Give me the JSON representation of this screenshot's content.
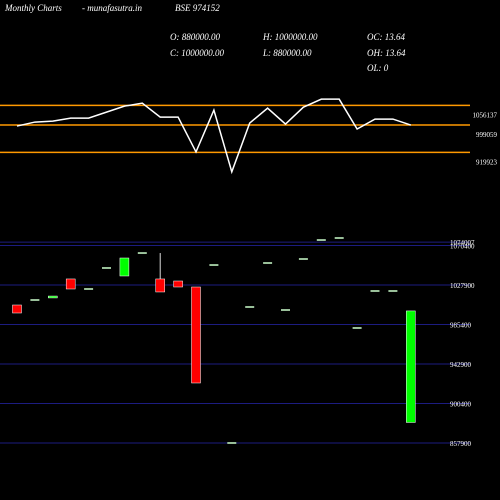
{
  "header": {
    "site": "Monthly Charts",
    "source": "- munafasutra.in",
    "symbol": "BSE 974152",
    "stats": [
      "O: 880000.00",
      "H: 1000000.00",
      "OC: 13.64",
      "C: 1000000.00",
      "L: 880000.00",
      "OH: 13.64",
      "OL: 0"
    ]
  },
  "chart_data": [
    {
      "type": "line",
      "color": "#ffffff",
      "values": [
        996179,
        1007699,
        1010579,
        1019219,
        1019219,
        1036499,
        1053779,
        1062419,
        1022099,
        1022099,
        921299,
        1042259,
        863699,
        1004819,
        1048019,
        1001939,
        1050899,
        1073939,
        1073939,
        987539,
        1016339,
        1016339,
        999059
      ],
      "ylim": [
        840000,
        1115000
      ],
      "levels": [
        1056137,
        999059,
        919923
      ],
      "level_color": "#ff9900"
    },
    {
      "type": "candlestick",
      "up_color": "#00ff00",
      "down_color": "#ff0000",
      "flat_color": "#ccffcc",
      "grid_color": "#1c1c80",
      "open": [
        1006380,
        1011760,
        1014000,
        1034400,
        1023600,
        1046200,
        1037600,
        1062300,
        1034400,
        1032200,
        1025750,
        1049400,
        857900,
        1004230,
        1051570,
        1001000,
        1055870,
        1076300,
        1078470,
        981640,
        1021450,
        1021450,
        880000
      ],
      "high": [
        1006380,
        1011760,
        1016000,
        1034400,
        1023600,
        1046200,
        1056950,
        1062300,
        1062300,
        1032200,
        1025750,
        1049400,
        857900,
        1004230,
        1051570,
        1001000,
        1055870,
        1076300,
        1078470,
        981640,
        1021450,
        1021450,
        1000000
      ],
      "low": [
        997770,
        1011760,
        1014000,
        1023600,
        1023600,
        1046200,
        1037600,
        1062300,
        1020400,
        1025750,
        922460,
        1049400,
        857900,
        1004230,
        1051570,
        1001000,
        1055870,
        1076300,
        1078470,
        981640,
        1021450,
        1021450,
        880000
      ],
      "close": [
        997770,
        1011760,
        1016000,
        1023600,
        1023600,
        1046200,
        1056950,
        1062300,
        1020400,
        1025750,
        922460,
        1049400,
        857900,
        1004230,
        1051570,
        1001000,
        1055870,
        1076300,
        1078470,
        981640,
        1021450,
        1021450,
        1000000
      ],
      "ylim": [
        839600,
        1087080
      ],
      "yticks": [
        1074007,
        1070400,
        1027900,
        985400,
        942900,
        900400,
        857900
      ]
    }
  ]
}
